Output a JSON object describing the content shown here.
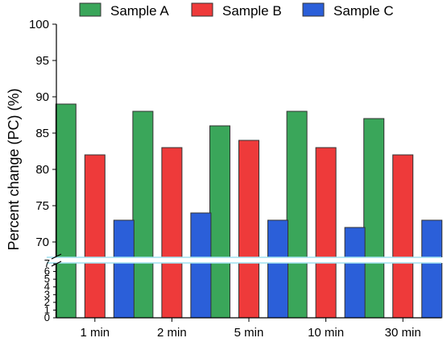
{
  "chart_data": {
    "type": "bar",
    "title": "",
    "xlabel": "",
    "ylabel": "Percent change (PC) (%)",
    "categories": [
      "1 min",
      "2 min",
      "5 min",
      "10 min",
      "30 min"
    ],
    "series": [
      {
        "name": "Sample A",
        "color": "#3aa65a",
        "values": [
          89,
          88,
          86,
          88,
          87
        ]
      },
      {
        "name": "Sample B",
        "color": "#ee3a3a",
        "values": [
          82,
          83,
          84,
          83,
          82
        ]
      },
      {
        "name": "Sample C",
        "color": "#2b5fd9",
        "values": [
          73,
          74,
          73,
          72,
          73
        ]
      }
    ],
    "y_axis_break": true,
    "ylim_upper": [
      68,
      100
    ],
    "ylim_lower": [
      0,
      7
    ],
    "yticks_upper": [
      "70",
      "75",
      "80",
      "85",
      "90",
      "95",
      "100"
    ],
    "yticks_lower": [
      "0",
      "1",
      "2",
      "3",
      "4",
      "5",
      "6",
      "7"
    ],
    "legend_position": "top",
    "grid": false
  }
}
